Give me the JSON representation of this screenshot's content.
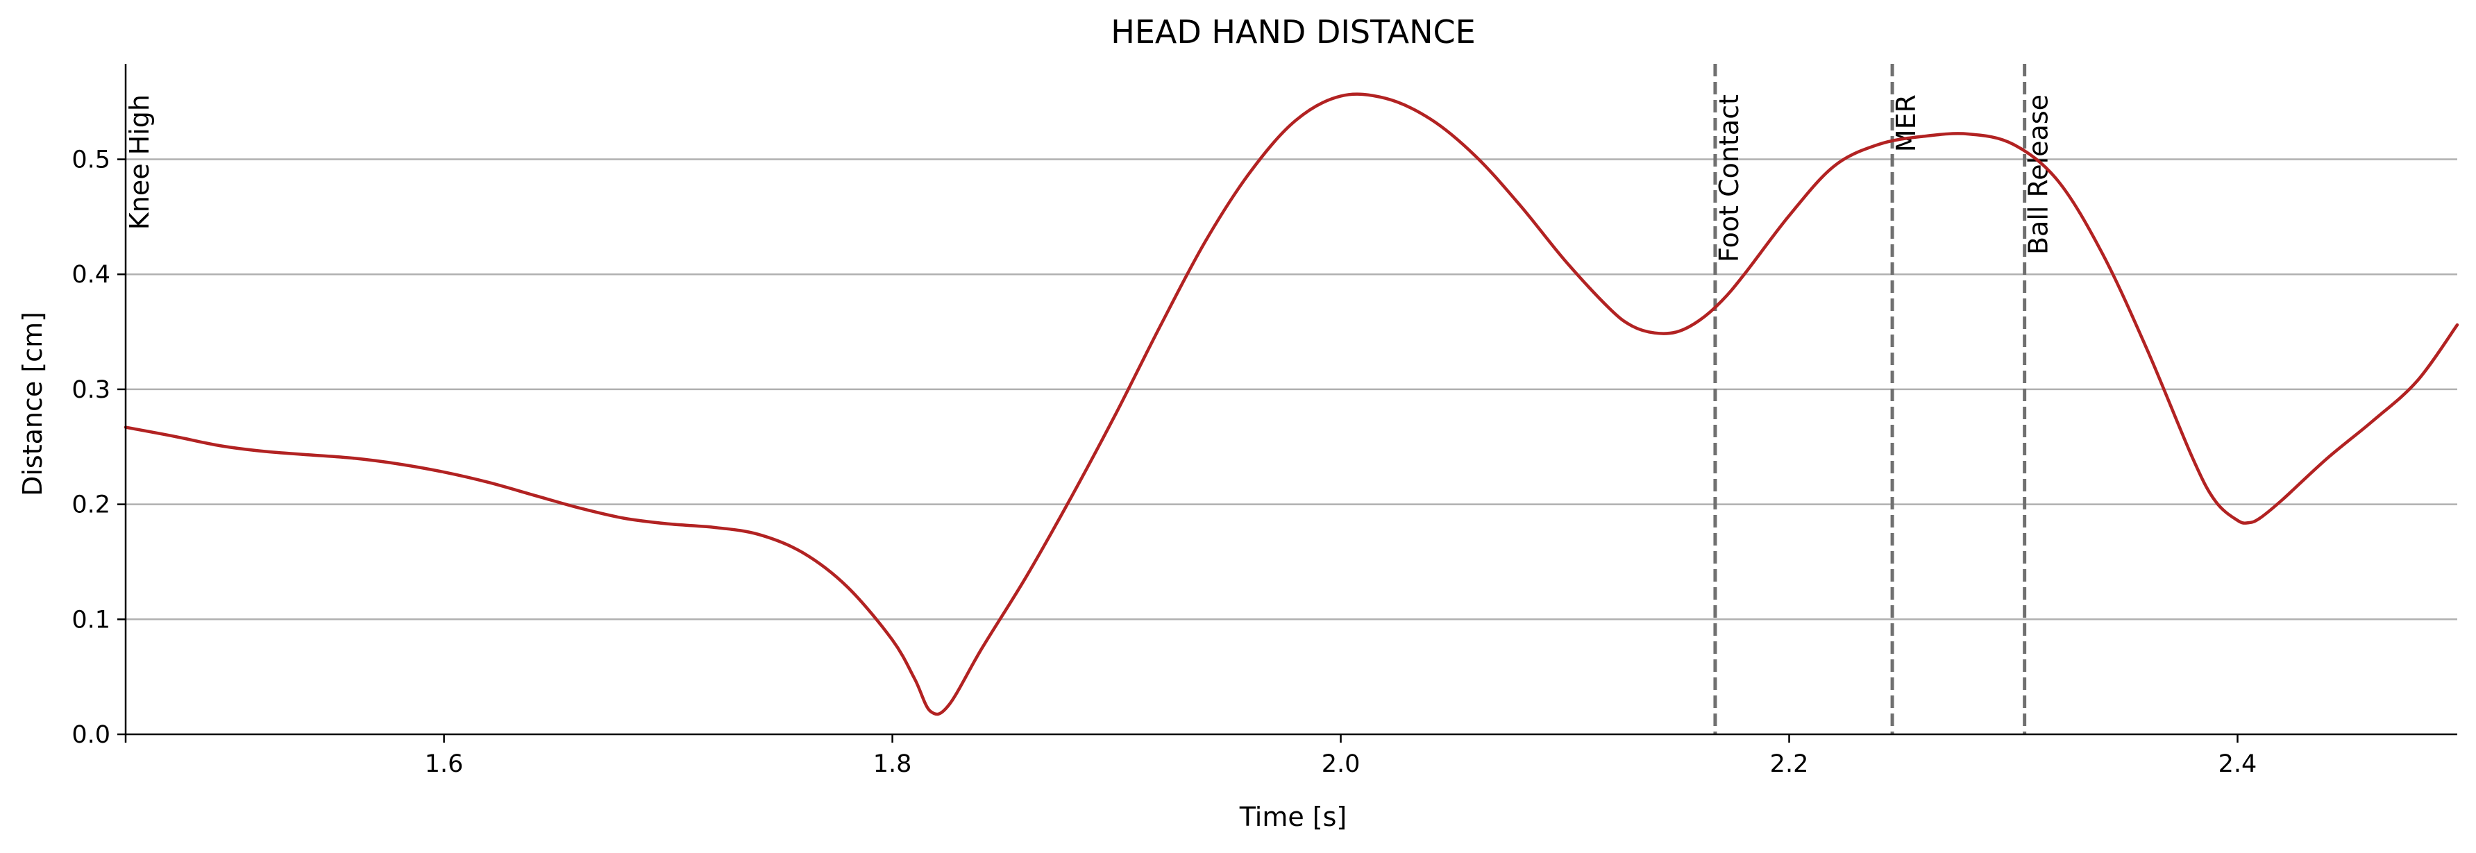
{
  "chart_data": {
    "type": "line",
    "title": "HEAD HAND DISTANCE",
    "xlabel": "Time [s]",
    "ylabel": "Distance [cm]",
    "xlim": [
      1.458,
      2.498
    ],
    "ylim": [
      0.0,
      0.583
    ],
    "xticks": [
      1.6,
      1.8,
      2.0,
      2.2,
      2.4
    ],
    "xtick_labels": [
      "1.6",
      "1.8",
      "2.0",
      "2.2",
      "2.4"
    ],
    "yticks": [
      0.0,
      0.1,
      0.2,
      0.3,
      0.4,
      0.5
    ],
    "ytick_labels": [
      "0.0",
      "0.1",
      "0.2",
      "0.3",
      "0.4",
      "0.5"
    ],
    "grid": "horizontal",
    "colors": {
      "line": "#b22222",
      "event_line": "#707070",
      "grid": "#b0b0b0"
    },
    "events": [
      {
        "label": "Knee High",
        "x": 1.458
      },
      {
        "label": "Foot Contact",
        "x": 2.167
      },
      {
        "label": "MER",
        "x": 2.246
      },
      {
        "label": "Ball Release",
        "x": 2.305
      }
    ],
    "series": [
      {
        "x": [
          1.458,
          1.48,
          1.5,
          1.52,
          1.54,
          1.56,
          1.58,
          1.6,
          1.62,
          1.64,
          1.66,
          1.68,
          1.7,
          1.72,
          1.74,
          1.76,
          1.78,
          1.8,
          1.81,
          1.817,
          1.825,
          1.84,
          1.86,
          1.88,
          1.9,
          1.92,
          1.94,
          1.96,
          1.98,
          2.0,
          2.02,
          2.04,
          2.06,
          2.08,
          2.1,
          2.12,
          2.13,
          2.14,
          2.15,
          2.16,
          2.17,
          2.18,
          2.2,
          2.22,
          2.24,
          2.26,
          2.28,
          2.3,
          2.32,
          2.34,
          2.36,
          2.38,
          2.39,
          2.4,
          2.405,
          2.41,
          2.42,
          2.44,
          2.46,
          2.48,
          2.498
        ],
        "y": [
          0.267,
          0.259,
          0.251,
          0.246,
          0.243,
          0.24,
          0.235,
          0.228,
          0.219,
          0.208,
          0.197,
          0.188,
          0.183,
          0.18,
          0.174,
          0.158,
          0.128,
          0.082,
          0.048,
          0.02,
          0.025,
          0.075,
          0.138,
          0.207,
          0.28,
          0.357,
          0.43,
          0.49,
          0.534,
          0.555,
          0.553,
          0.535,
          0.503,
          0.46,
          0.412,
          0.37,
          0.355,
          0.349,
          0.35,
          0.36,
          0.377,
          0.4,
          0.451,
          0.494,
          0.513,
          0.52,
          0.522,
          0.513,
          0.481,
          0.417,
          0.333,
          0.24,
          0.203,
          0.186,
          0.184,
          0.188,
          0.204,
          0.24,
          0.272,
          0.307,
          0.356
        ]
      }
    ]
  }
}
